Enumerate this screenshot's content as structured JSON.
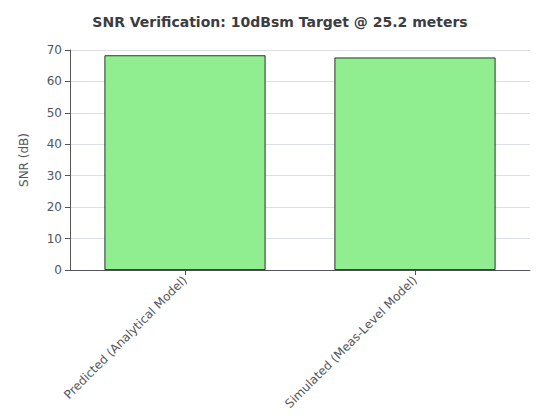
{
  "chart_data": {
    "type": "bar",
    "title": "SNR Verification: 10dBsm Target @ 25.2 meters",
    "ylabel": "SNR (dB)",
    "categories": [
      "Predicted (Analytical Model)",
      "Simulated (Meas-Level Model)"
    ],
    "values": [
      68.3,
      67.6
    ],
    "color": "#90EE90",
    "ylim": [
      0,
      70
    ],
    "yticks": [
      0,
      10,
      20,
      30,
      40,
      50,
      60,
      70
    ],
    "grid": true
  }
}
